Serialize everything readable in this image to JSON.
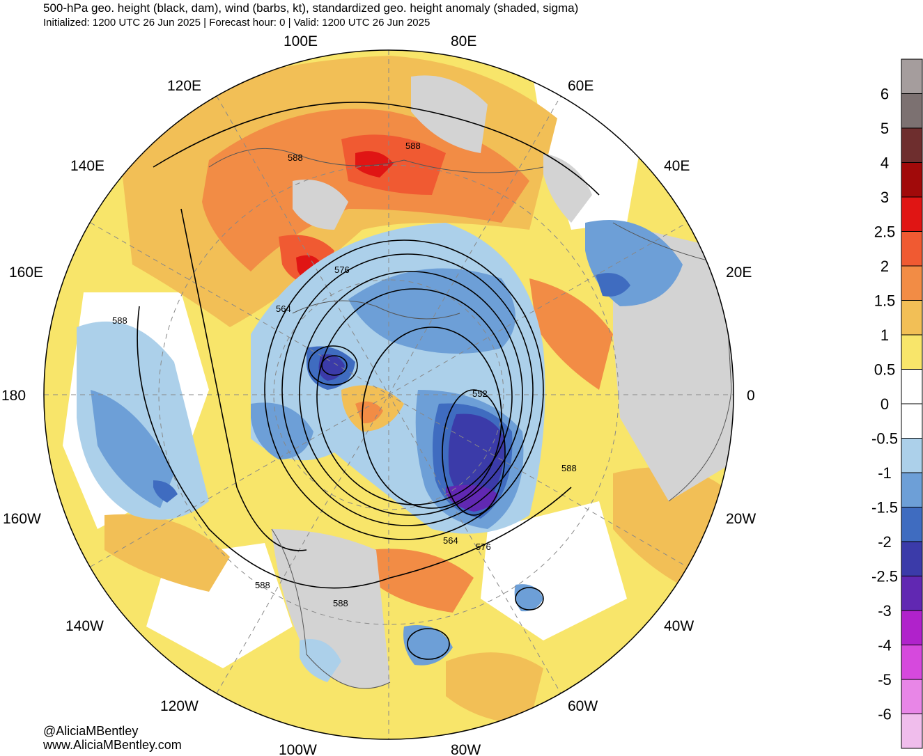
{
  "header": {
    "title": "500-hPa geo. height (black, dam), wind (barbs, kt), standardized geo. height anomaly (shaded, sigma)",
    "subtitle": "Initialized: 1200 UTC 26 Jun 2025 | Forecast hour: 0 | Valid: 1200 UTC 26 Jun 2025"
  },
  "map": {
    "projection": "north-polar-stereographic",
    "longitude_labels": [
      "100E",
      "80E",
      "120E",
      "60E",
      "140E",
      "40E",
      "160E",
      "20E",
      "180",
      "0",
      "160W",
      "20W",
      "140W",
      "40W",
      "120W",
      "60W",
      "100W",
      "80W"
    ],
    "contour_labels": [
      "588",
      "588",
      "576",
      "564",
      "588",
      "552",
      "588",
      "564",
      "576",
      "588",
      "588"
    ]
  },
  "colorbar": {
    "ticks": [
      "6",
      "5",
      "4",
      "3",
      "2.5",
      "2",
      "1.5",
      "1",
      "0.5",
      "0",
      "-0.5",
      "-1",
      "-1.5",
      "-2",
      "-2.5",
      "-3",
      "-4",
      "-5",
      "-6"
    ],
    "colors": [
      "#a59d9d",
      "#7c7171",
      "#6e2e2e",
      "#a10a0a",
      "#e01514",
      "#f05a32",
      "#f28c45",
      "#f2bf56",
      "#f8e56a",
      "#ffffff",
      "#ffffff",
      "#acd0ea",
      "#6d9fd7",
      "#3f6cc0",
      "#3b3ba9",
      "#6128b2",
      "#b022cb",
      "#d649dd",
      "#e886e7",
      "#f0bdec"
    ]
  },
  "credits": {
    "handle": "@AliciaMBentley",
    "website": "www.AliciaMBentley.com"
  }
}
